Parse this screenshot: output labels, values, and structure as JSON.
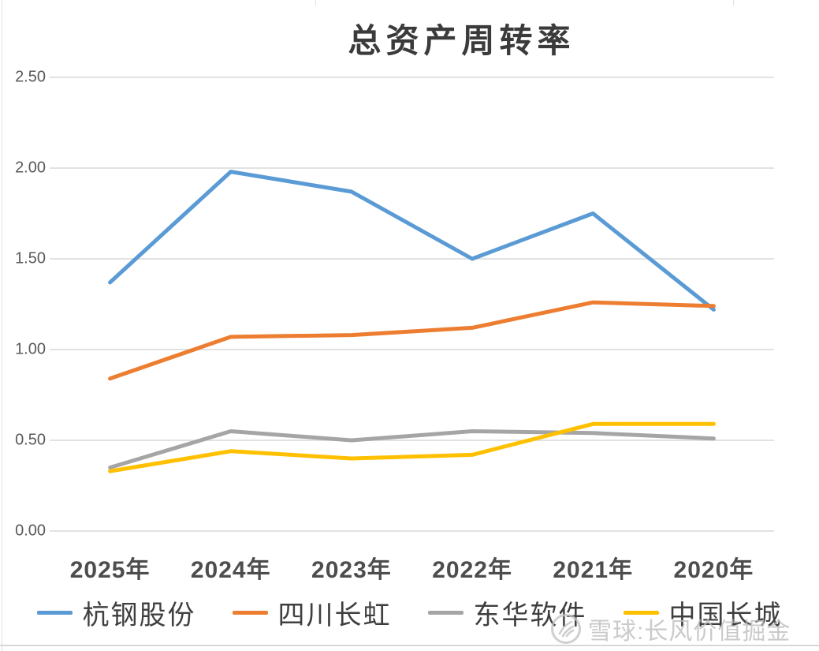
{
  "chart_data": {
    "type": "line",
    "title": "总资产周转率",
    "categories": [
      "2025年",
      "2024年",
      "2023年",
      "2022年",
      "2021年",
      "2020年"
    ],
    "series": [
      {
        "name": "杭钢股份",
        "color": "#5B9BD5",
        "values": [
          1.37,
          1.98,
          1.87,
          1.5,
          1.75,
          1.22
        ]
      },
      {
        "name": "四川长虹",
        "color": "#ED7D31",
        "values": [
          0.84,
          1.07,
          1.08,
          1.12,
          1.26,
          1.24
        ]
      },
      {
        "name": "东华软件",
        "color": "#A5A5A5",
        "values": [
          0.35,
          0.55,
          0.5,
          0.55,
          0.54,
          0.51
        ]
      },
      {
        "name": "中国长城",
        "color": "#FFC000",
        "values": [
          0.33,
          0.44,
          0.4,
          0.42,
          0.59,
          0.59
        ]
      }
    ],
    "y_ticks": [
      "2.50",
      "2.00",
      "1.50",
      "1.00",
      "0.50",
      "0.00"
    ],
    "ylim": [
      0,
      2.5
    ],
    "grid": true,
    "gridline_color": "#d9d9d9",
    "legend_position": "bottom",
    "xlabel": "",
    "ylabel": ""
  },
  "watermark": {
    "text": "雪球:长风价值掘金",
    "color": "#bdbdbd",
    "icon": "xueqiu-snowball-logo"
  }
}
